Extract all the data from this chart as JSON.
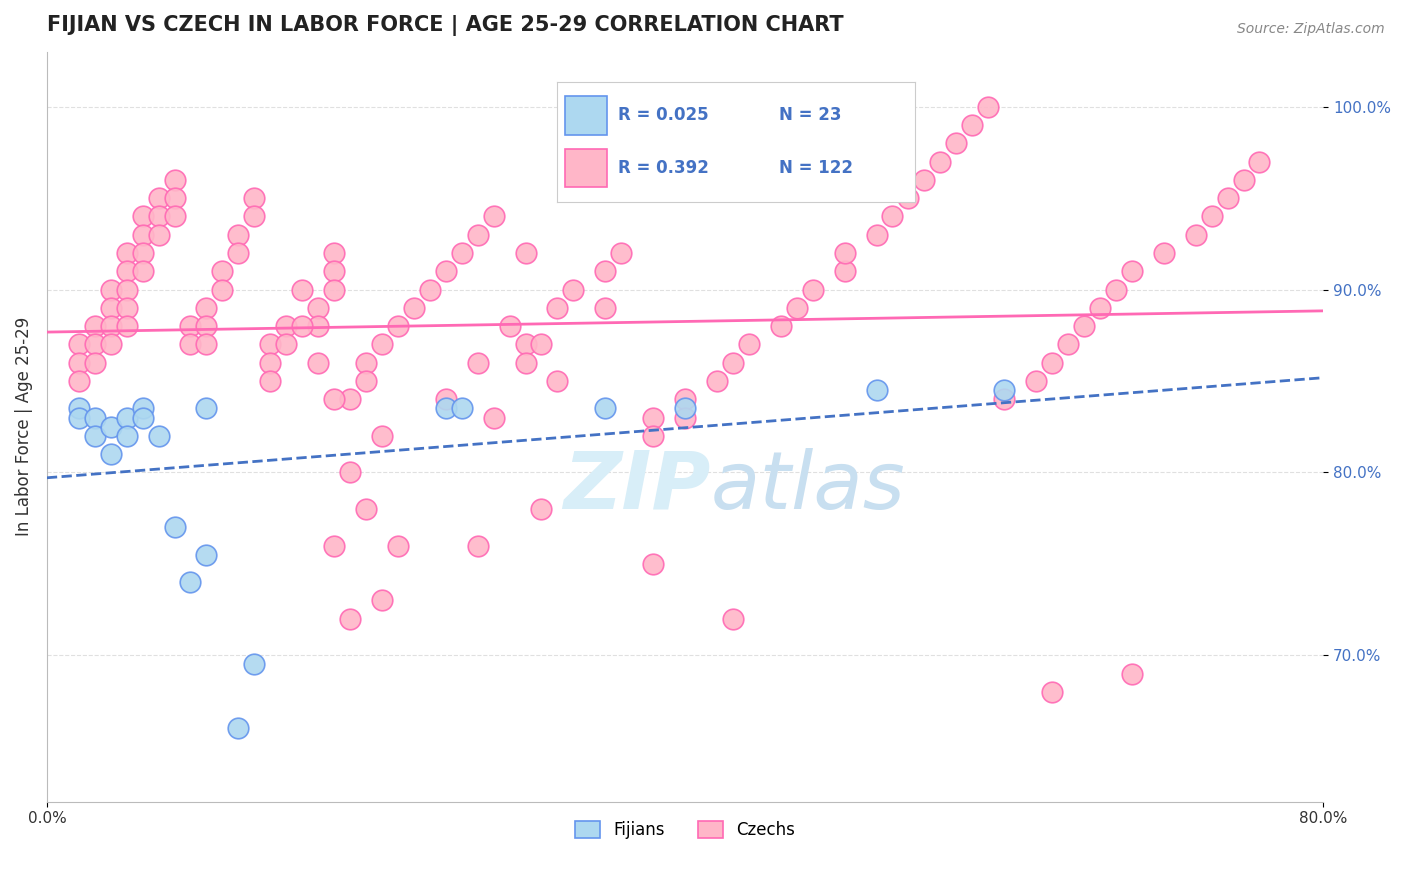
{
  "title": "FIJIAN VS CZECH IN LABOR FORCE | AGE 25-29 CORRELATION CHART",
  "source_text": "Source: ZipAtlas.com",
  "ylabel": "In Labor Force | Age 25-29",
  "xlim": [
    0.0,
    0.8
  ],
  "ylim": [
    0.62,
    1.03
  ],
  "fijian_color": "#ADD8F0",
  "czech_color": "#FFB6C8",
  "fijian_edge": "#6495ED",
  "czech_edge": "#FF69B4",
  "fijian_line_color": "#4472C4",
  "czech_line_color": "#FF69B4",
  "watermark_color": "#D8EEF8",
  "R_fijian": 0.025,
  "N_fijian": 23,
  "R_czech": 0.392,
  "N_czech": 122,
  "legend_label_fijian": "Fijians",
  "legend_label_czech": "Czechs",
  "grid_color": "#E0E0E0",
  "background_color": "#FFFFFF",
  "fijian_x": [
    0.02,
    0.02,
    0.03,
    0.03,
    0.04,
    0.04,
    0.05,
    0.05,
    0.06,
    0.06,
    0.07,
    0.08,
    0.09,
    0.1,
    0.1,
    0.12,
    0.13,
    0.25,
    0.26,
    0.35,
    0.4,
    0.52,
    0.6
  ],
  "fijian_y": [
    0.835,
    0.83,
    0.83,
    0.82,
    0.825,
    0.81,
    0.83,
    0.82,
    0.835,
    0.83,
    0.82,
    0.77,
    0.74,
    0.835,
    0.755,
    0.66,
    0.695,
    0.835,
    0.835,
    0.835,
    0.835,
    0.845,
    0.845
  ],
  "czech_x": [
    0.02,
    0.02,
    0.02,
    0.03,
    0.03,
    0.03,
    0.04,
    0.04,
    0.04,
    0.04,
    0.05,
    0.05,
    0.05,
    0.05,
    0.05,
    0.06,
    0.06,
    0.06,
    0.06,
    0.07,
    0.07,
    0.07,
    0.08,
    0.08,
    0.08,
    0.09,
    0.09,
    0.1,
    0.1,
    0.1,
    0.11,
    0.11,
    0.12,
    0.12,
    0.13,
    0.13,
    0.14,
    0.14,
    0.14,
    0.15,
    0.15,
    0.16,
    0.17,
    0.17,
    0.18,
    0.18,
    0.18,
    0.19,
    0.2,
    0.2,
    0.21,
    0.22,
    0.23,
    0.24,
    0.25,
    0.26,
    0.27,
    0.28,
    0.3,
    0.3,
    0.32,
    0.33,
    0.35,
    0.36,
    0.38,
    0.38,
    0.4,
    0.4,
    0.42,
    0.43,
    0.44,
    0.46,
    0.47,
    0.48,
    0.5,
    0.5,
    0.52,
    0.53,
    0.54,
    0.55,
    0.56,
    0.57,
    0.58,
    0.59,
    0.6,
    0.62,
    0.63,
    0.64,
    0.65,
    0.66,
    0.67,
    0.68,
    0.7,
    0.72,
    0.73,
    0.74,
    0.75,
    0.76,
    0.38,
    0.43,
    0.27,
    0.31,
    0.18,
    0.19,
    0.21,
    0.22,
    0.3,
    0.31,
    0.35,
    0.25,
    0.27,
    0.29,
    0.18,
    0.19,
    0.2,
    0.21,
    0.28,
    0.32,
    0.16,
    0.17,
    0.63,
    0.68
  ],
  "czech_y": [
    0.87,
    0.86,
    0.85,
    0.88,
    0.87,
    0.86,
    0.9,
    0.89,
    0.88,
    0.87,
    0.92,
    0.91,
    0.9,
    0.89,
    0.88,
    0.94,
    0.93,
    0.92,
    0.91,
    0.95,
    0.94,
    0.93,
    0.96,
    0.95,
    0.94,
    0.88,
    0.87,
    0.89,
    0.88,
    0.87,
    0.91,
    0.9,
    0.93,
    0.92,
    0.95,
    0.94,
    0.87,
    0.86,
    0.85,
    0.88,
    0.87,
    0.9,
    0.89,
    0.88,
    0.92,
    0.91,
    0.9,
    0.84,
    0.86,
    0.85,
    0.87,
    0.88,
    0.89,
    0.9,
    0.91,
    0.92,
    0.93,
    0.94,
    0.87,
    0.86,
    0.89,
    0.9,
    0.91,
    0.92,
    0.83,
    0.82,
    0.84,
    0.83,
    0.85,
    0.86,
    0.87,
    0.88,
    0.89,
    0.9,
    0.91,
    0.92,
    0.93,
    0.94,
    0.95,
    0.96,
    0.97,
    0.98,
    0.99,
    1.0,
    0.84,
    0.85,
    0.86,
    0.87,
    0.88,
    0.89,
    0.9,
    0.91,
    0.92,
    0.93,
    0.94,
    0.95,
    0.96,
    0.97,
    0.75,
    0.72,
    0.76,
    0.78,
    0.84,
    0.72,
    0.73,
    0.76,
    0.92,
    0.87,
    0.89,
    0.84,
    0.86,
    0.88,
    0.76,
    0.8,
    0.78,
    0.82,
    0.83,
    0.85,
    0.88,
    0.86,
    0.68,
    0.69
  ]
}
